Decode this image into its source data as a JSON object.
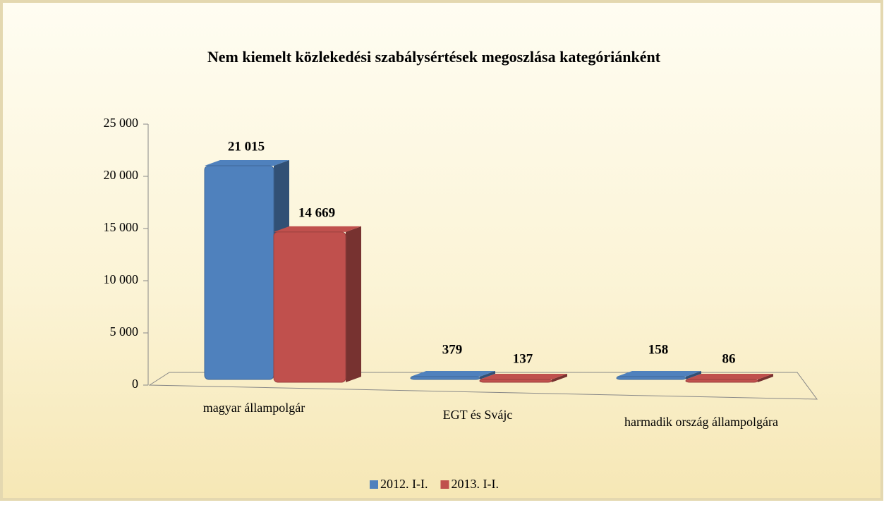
{
  "chart_data": {
    "type": "bar3d",
    "title": "Nem kiemelt közlekedési szabálysértések megoszlása kategóriánként",
    "categories": [
      "magyar állampolgár",
      "EGT és Svájc",
      "harmadik ország állampolgára"
    ],
    "series": [
      {
        "name": "2012. I-I.",
        "color": "#4f81bd",
        "values": [
          21015,
          379,
          158
        ],
        "value_labels": [
          "21 015",
          "379",
          "158"
        ]
      },
      {
        "name": "2013. I-I.",
        "color": "#c0504d",
        "values": [
          14669,
          137,
          86
        ],
        "value_labels": [
          "14 669",
          "137",
          "86"
        ]
      }
    ],
    "ylim": [
      0,
      25000
    ],
    "yticks": [
      {
        "value": 0,
        "label": "0"
      },
      {
        "value": 5000,
        "label": "5 000"
      },
      {
        "value": 10000,
        "label": "10 000"
      },
      {
        "value": 15000,
        "label": "15 000"
      },
      {
        "value": 20000,
        "label": "20 000"
      },
      {
        "value": 25000,
        "label": "25 000"
      }
    ],
    "legend": "bottom"
  }
}
